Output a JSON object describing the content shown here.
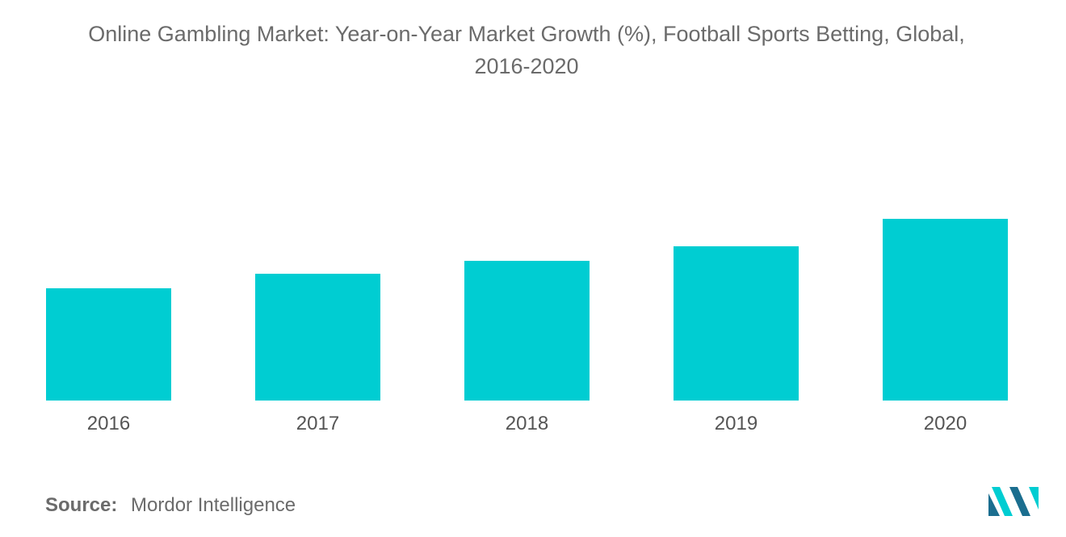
{
  "title_line1": "Online Gambling Market: Year-on-Year Market Growth (%), Football Sports Betting, Global,",
  "title_line2": "2016-2020",
  "source": {
    "label": "Source:",
    "value": "Mordor Intelligence"
  },
  "colors": {
    "bar": "#00CDD2",
    "logo_dark": "#1B6E8F",
    "logo_light": "#00CDD2"
  },
  "logo_icon": "mordor-intelligence-logo",
  "chart_data": {
    "type": "bar",
    "title": "Online Gambling Market: Year-on-Year Market Growth (%), Football Sports Betting, Global, 2016-2020",
    "categories": [
      "2016",
      "2017",
      "2018",
      "2019",
      "2020"
    ],
    "values": [
      139,
      157,
      173,
      191,
      225
    ],
    "xlabel": "",
    "ylabel": "",
    "ylim": [
      0,
      240
    ],
    "grid": false,
    "legend": "none",
    "value_labels": false,
    "axis_values_shown": false
  }
}
